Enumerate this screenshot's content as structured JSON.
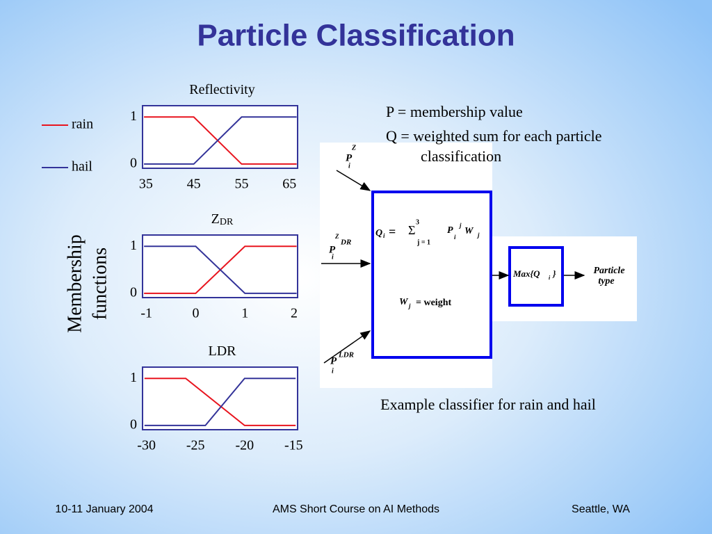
{
  "title": "Particle Classification",
  "ylabel_lines": [
    "Membership",
    "functions"
  ],
  "chart_data": [
    {
      "type": "line",
      "title": "Reflectivity",
      "xlim": [
        34.3,
        66.7
      ],
      "xticks": [
        35,
        45,
        55,
        65
      ],
      "ylim": [
        -0.09,
        1.24
      ],
      "yticks": [
        0,
        1
      ],
      "series": [
        {
          "name": "rain",
          "color": "#e8141e",
          "x": [
            34.6,
            45,
            55,
            66.5
          ],
          "values": [
            1,
            1,
            0,
            0
          ]
        },
        {
          "name": "hail",
          "color": "#333399",
          "x": [
            34.6,
            45,
            55,
            66.5
          ],
          "values": [
            0,
            0,
            1,
            1
          ]
        }
      ]
    },
    {
      "type": "line",
      "title": "Z",
      "title_sub": "DR",
      "xlim": [
        -1.08,
        2.07
      ],
      "xticks": [
        -1,
        0,
        1,
        2
      ],
      "ylim": [
        -0.09,
        1.24
      ],
      "yticks": [
        0,
        1
      ],
      "series": [
        {
          "name": "rain",
          "color": "#e8141e",
          "x": [
            -1.05,
            0,
            1,
            2.05
          ],
          "values": [
            0,
            0,
            1,
            1
          ]
        },
        {
          "name": "hail",
          "color": "#333399",
          "x": [
            -1.05,
            0,
            1,
            2.05
          ],
          "values": [
            1,
            1,
            0,
            0
          ]
        }
      ]
    },
    {
      "type": "line",
      "title": "LDR",
      "xlim": [
        -30.4,
        -14.6
      ],
      "xticks": [
        -30,
        -25,
        -20,
        -15
      ],
      "ylim": [
        -0.09,
        1.24
      ],
      "yticks": [
        0,
        1
      ],
      "series": [
        {
          "name": "rain",
          "color": "#e8141e",
          "x": [
            -30.2,
            -26,
            -20,
            -14.8
          ],
          "values": [
            1,
            1,
            0,
            0
          ]
        },
        {
          "name": "hail",
          "color": "#333399",
          "x": [
            -30.2,
            -24,
            -20,
            -14.8
          ],
          "values": [
            0,
            0,
            1,
            1
          ]
        }
      ]
    }
  ],
  "notes": [
    "P = membership value",
    "Q = weighted sum for each particle",
    "classification"
  ],
  "diagram": {
    "in_z": [
      "P",
      "Z",
      "i"
    ],
    "in_zdr": [
      "P",
      "Z",
      "DR",
      "i"
    ],
    "in_ldr": [
      "P",
      "LDR",
      "i"
    ],
    "q_formula": [
      "Q",
      "i",
      "=",
      "Σ",
      "3",
      "j = 1",
      "P",
      "i",
      "j",
      "W",
      "j"
    ],
    "weight": [
      "W",
      "j",
      "= weight"
    ],
    "max": [
      "Max{Q",
      "i",
      "}"
    ],
    "output": [
      "Particle",
      "type"
    ]
  },
  "caption": "Example classifier for rain and hail",
  "footer": [
    "10-11 January 2004",
    "AMS Short Course on AI Methods",
    "Seattle, WA"
  ]
}
